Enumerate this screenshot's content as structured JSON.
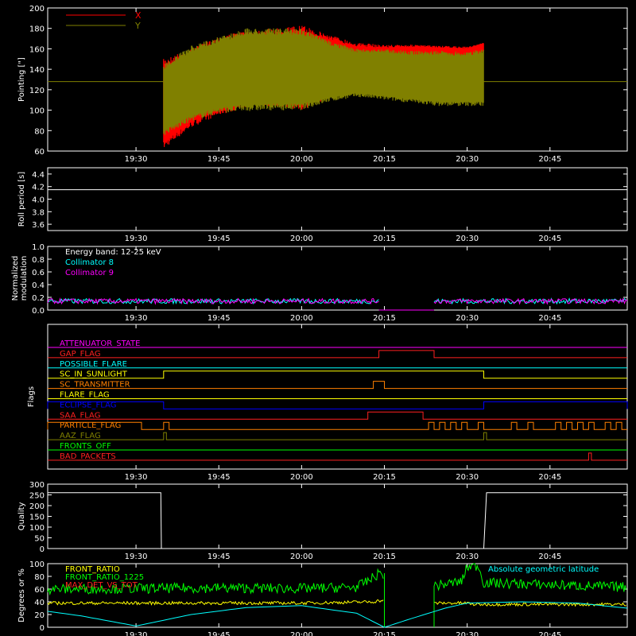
{
  "x_ticks": [
    "19:30",
    "19:45",
    "20:00",
    "20:15",
    "20:30",
    "20:45"
  ],
  "colors": {
    "X": "#ff0000",
    "Y": "#808000",
    "c8": "#00ffff",
    "c9": "#ff00ff",
    "white": "#ffffff"
  },
  "chart_data": [
    {
      "id": "pointing",
      "type": "area",
      "ylabel": "Pointing [\"]",
      "ylim": [
        60,
        200
      ],
      "yticks": [
        60,
        80,
        100,
        120,
        140,
        160,
        180,
        200
      ],
      "legend": [
        "X",
        "Y"
      ],
      "x": [
        "19:35",
        "19:40",
        "19:45",
        "19:50",
        "19:55",
        "20:00",
        "20:05",
        "20:10",
        "20:15",
        "20:20",
        "20:25",
        "20:30",
        "20:33"
      ],
      "series": [
        {
          "name": "X",
          "upper": [
            150,
            160,
            172,
            178,
            180,
            183,
            174,
            166,
            164,
            164,
            163,
            162,
            166
          ],
          "lower": [
            62,
            83,
            95,
            103,
            104,
            100,
            112,
            118,
            128,
            140,
            140,
            142,
            158
          ]
        },
        {
          "name": "Y",
          "upper": [
            145,
            163,
            172,
            180,
            180,
            180,
            168,
            160,
            160,
            158,
            158,
            157,
            160
          ],
          "lower": [
            75,
            89,
            97,
            99,
            100,
            100,
            108,
            113,
            110,
            107,
            104,
            104,
            104
          ]
        }
      ],
      "constant": {
        "value": 128,
        "color": "#808000"
      }
    },
    {
      "id": "roll",
      "type": "line",
      "ylabel": "Roll period [s]",
      "ylim": [
        3.5,
        4.5
      ],
      "yticks": [
        3.6,
        3.8,
        4.0,
        4.2,
        4.4
      ],
      "ytick_labels": [
        "3.6",
        "3.8",
        "4.0",
        "4.2",
        "4.4"
      ],
      "value": 4.15
    },
    {
      "id": "modulation",
      "type": "line",
      "ylabel_lines": [
        "Normalized",
        "modulation"
      ],
      "ylim": [
        0,
        1
      ],
      "yticks": [
        0,
        0.2,
        0.4,
        0.6,
        0.8,
        1.0
      ],
      "ytick_labels": [
        "0.0",
        "0.2",
        "0.4",
        "0.6",
        "0.8",
        "1.0"
      ],
      "annotations": [
        "Energy band: 12-25 keV",
        "Collimator 8",
        "Collimator 9"
      ],
      "series": [
        {
          "name": "Collimator 8",
          "color": "#00ffff",
          "segments": [
            [
              "19:14",
              "20:14",
              0.14
            ],
            [
              "20:24",
              "20:59",
              0.14
            ]
          ]
        },
        {
          "name": "Collimator 9",
          "color": "#ff00ff",
          "segments": [
            [
              "19:14",
              "20:14",
              0.14
            ],
            [
              "20:24",
              "20:59",
              0.14
            ]
          ],
          "gap_value": 0
        }
      ]
    },
    {
      "id": "flags",
      "type": "line",
      "ylabel": "Flags",
      "flags": [
        {
          "name": "ATTENUATOR_STATE",
          "color": "#ff00ff",
          "on": []
        },
        {
          "name": "GAP_FLAG",
          "color": "#ff2020",
          "on": [
            [
              "20:14",
              "20:24"
            ]
          ]
        },
        {
          "name": "POSSIBLE_FLARE",
          "color": "#00ffff",
          "on": []
        },
        {
          "name": "SC_IN_SUNLIGHT",
          "color": "#ffff00",
          "on": [
            [
              "19:35",
              "20:33"
            ]
          ]
        },
        {
          "name": "SC_TRANSMITTER",
          "color": "#ff8000",
          "on": [
            [
              "20:13",
              "20:15"
            ]
          ]
        },
        {
          "name": "FLARE_FLAG",
          "color": "#ffff00",
          "on": []
        },
        {
          "name": "ECLIPSE_FLAG",
          "color": "#0000ff",
          "on": [
            [
              "19:14",
              "19:35"
            ],
            [
              "20:33",
              "20:59"
            ]
          ]
        },
        {
          "name": "SAA_FLAG",
          "color": "#ff2020",
          "on": [
            [
              "20:12",
              "20:22"
            ]
          ]
        },
        {
          "name": "PARTICLE_FLAG",
          "color": "#ff8000",
          "on": [
            [
              "19:14",
              "19:31"
            ],
            [
              "19:35",
              "19:36"
            ],
            [
              "20:23",
              "20:24"
            ],
            [
              "20:25",
              "20:26"
            ],
            [
              "20:27",
              "20:28"
            ],
            [
              "20:29",
              "20:30"
            ],
            [
              "20:32",
              "20:33"
            ],
            [
              "20:38",
              "20:39"
            ],
            [
              "20:41",
              "20:42"
            ],
            [
              "20:46",
              "20:47"
            ],
            [
              "20:48",
              "20:49"
            ],
            [
              "20:50",
              "20:51"
            ],
            [
              "20:52",
              "20:53"
            ],
            [
              "20:55",
              "20:56"
            ],
            [
              "20:57",
              "20:58"
            ]
          ]
        },
        {
          "name": "AAZ_FLAG",
          "color": "#808000",
          "on": [
            [
              "19:35",
              "19:35.5"
            ],
            [
              "20:33",
              "20:33.5"
            ]
          ]
        },
        {
          "name": "FRONTS_OFF",
          "color": "#00ff00",
          "on": []
        },
        {
          "name": "BAD_PACKETS",
          "color": "#ff2020",
          "on": [
            [
              "20:52",
              "20:52.5"
            ]
          ]
        }
      ]
    },
    {
      "id": "quality",
      "type": "line",
      "ylabel": "Quality",
      "ylim": [
        0,
        300
      ],
      "yticks": [
        0,
        50,
        100,
        150,
        200,
        250,
        300
      ],
      "ytick_labels": [
        "0",
        "50",
        "100",
        "150",
        "200",
        "250",
        "300"
      ],
      "x": [
        "19:14",
        "19:34.5",
        "19:34.6",
        "20:33",
        "20:33.5",
        "20:59"
      ],
      "values": [
        260,
        260,
        0,
        0,
        260,
        260
      ]
    },
    {
      "id": "ratios",
      "type": "line",
      "ylabel": "Degrees or %",
      "ylim": [
        0,
        100
      ],
      "yticks": [
        0,
        20,
        40,
        60,
        80,
        100
      ],
      "ytick_labels": [
        "0",
        "20",
        "40",
        "60",
        "80",
        "100"
      ],
      "annotations": [
        "Absolute geometric latitude"
      ],
      "series": [
        {
          "name": "FRONT_RATIO",
          "color": "#ffff00",
          "x": [
            "19:14",
            "20:00",
            "20:13",
            "20:14",
            "20:24",
            "20:30",
            "20:31",
            "20:59"
          ],
          "values": [
            38,
            38,
            40,
            42,
            38,
            38,
            36,
            36
          ],
          "gap": [
            "20:15",
            "20:24"
          ]
        },
        {
          "name": "FRONT_RATIO_1225",
          "color": "#00ff00",
          "x": [
            "19:14",
            "19:45",
            "20:00",
            "20:10",
            "20:13",
            "20:14",
            "20:24",
            "20:29",
            "20:30",
            "20:32",
            "20:33",
            "20:59"
          ],
          "values": [
            60,
            62,
            61,
            63,
            78,
            85,
            65,
            72,
            95,
            97,
            70,
            63
          ],
          "gap": [
            "20:15",
            "20:24"
          ]
        },
        {
          "name": "MAX_DET_VS_TOT",
          "color": "#ff2020",
          "x": [],
          "values": []
        },
        {
          "name": "Absolute geometric latitude",
          "color": "#00ffff",
          "x": [
            "19:14",
            "19:20",
            "19:30",
            "19:40",
            "19:50",
            "20:00",
            "20:10",
            "20:15",
            "20:20",
            "20:26",
            "20:30",
            "20:40",
            "20:50",
            "20:59"
          ],
          "values": [
            25,
            18,
            2,
            20,
            31,
            34,
            22,
            0,
            14,
            30,
            38,
            40,
            38,
            30
          ]
        }
      ]
    }
  ]
}
